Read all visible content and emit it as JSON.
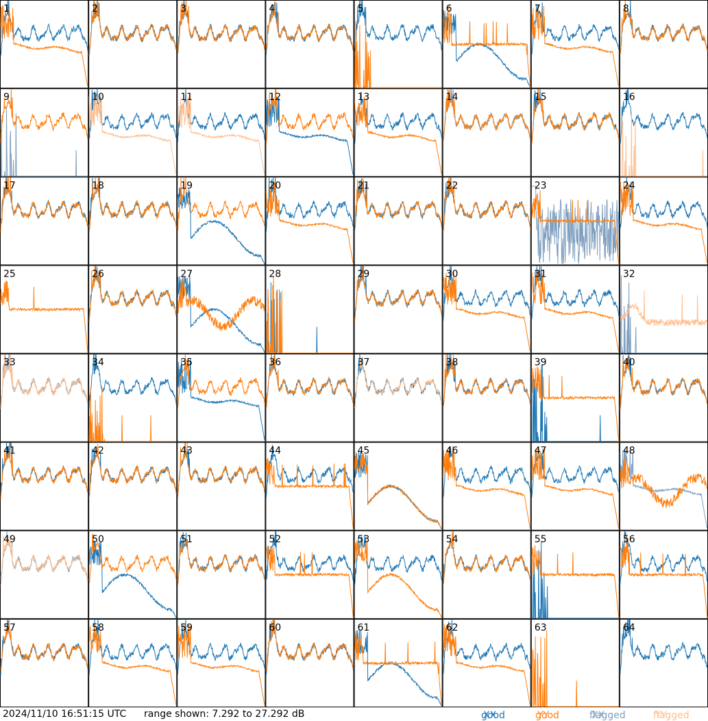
{
  "chart_data": {
    "type": "line",
    "layout": "8x8 small-multiples grid of antenna spectra",
    "timestamp": "2024/11/10 16:51:15 UTC",
    "range_text": "range shown: 7.292 to 27.292 dB",
    "ylim": [
      7.292,
      27.292
    ],
    "y_unit": "dB",
    "legend": [
      {
        "label": "good",
        "pol": "XX",
        "color": "#1f77b4"
      },
      {
        "label": "good",
        "pol": "YY",
        "color": "#ff7f0e"
      },
      {
        "label": "flagged",
        "pol": "XX",
        "color": "#7f9fbf"
      },
      {
        "label": "flagged",
        "pol": "YY",
        "color": "#ffbf8f"
      }
    ],
    "legend_placement": "bottom-right",
    "colors": {
      "good_xx": "#1f77b4",
      "good_yy": "#ff7f0e",
      "flagged_xx": "#7f9fbf",
      "flagged_yy": "#ffbf8f"
    },
    "panels": [
      {
        "id": "1",
        "xx": "normal",
        "yy": "low"
      },
      {
        "id": "2",
        "xx": "normal",
        "yy": "normal"
      },
      {
        "id": "3",
        "xx": "normal",
        "yy": "normal"
      },
      {
        "id": "4",
        "xx": "normal",
        "yy": "normal"
      },
      {
        "id": "5",
        "xx": "normal",
        "yy": "dead"
      },
      {
        "id": "6",
        "xx": "dip",
        "yy": "flat"
      },
      {
        "id": "7",
        "xx": "normal",
        "yy": "low"
      },
      {
        "id": "8",
        "xx": "normal",
        "yy": "normal"
      },
      {
        "id": "9",
        "xx": "flagged-dead",
        "yy": "normal"
      },
      {
        "id": "10",
        "xx": "normal",
        "yy": "flagged-low"
      },
      {
        "id": "11",
        "xx": "normal",
        "yy": "flagged-low"
      },
      {
        "id": "12",
        "xx": "low",
        "yy": "normal"
      },
      {
        "id": "13",
        "xx": "normal",
        "yy": "low"
      },
      {
        "id": "14",
        "xx": "flagged-normal",
        "yy": "normal"
      },
      {
        "id": "15",
        "xx": "normal",
        "yy": "normal"
      },
      {
        "id": "16",
        "xx": "normal",
        "yy": "flagged-dead"
      },
      {
        "id": "17",
        "xx": "normal",
        "yy": "normal"
      },
      {
        "id": "18",
        "xx": "normal",
        "yy": "normal"
      },
      {
        "id": "19",
        "xx": "dip",
        "yy": "normal"
      },
      {
        "id": "20",
        "xx": "normal",
        "yy": "low"
      },
      {
        "id": "21",
        "xx": "normal",
        "yy": "normal"
      },
      {
        "id": "22",
        "xx": "normal",
        "yy": "normal"
      },
      {
        "id": "23",
        "xx": "flagged-noise",
        "yy": "flat"
      },
      {
        "id": "24",
        "xx": "normal",
        "yy": "low"
      },
      {
        "id": "25",
        "xx": "none",
        "yy": "flat"
      },
      {
        "id": "26",
        "xx": "normal",
        "yy": "normal"
      },
      {
        "id": "27",
        "xx": "dip",
        "yy": "bumpy"
      },
      {
        "id": "28",
        "xx": "dead",
        "yy": "dead"
      },
      {
        "id": "29",
        "xx": "normal",
        "yy": "normal"
      },
      {
        "id": "30",
        "xx": "normal",
        "yy": "low"
      },
      {
        "id": "31",
        "xx": "normal",
        "yy": "low"
      },
      {
        "id": "32",
        "xx": "flagged-dead",
        "yy": "flagged-mid"
      },
      {
        "id": "33",
        "xx": "flagged-normal",
        "yy": "flagged-normal"
      },
      {
        "id": "34",
        "xx": "normal",
        "yy": "dead"
      },
      {
        "id": "35",
        "xx": "low",
        "yy": "normal"
      },
      {
        "id": "36",
        "xx": "normal",
        "yy": "normal"
      },
      {
        "id": "37",
        "xx": "normal",
        "yy": "flagged-normal"
      },
      {
        "id": "38",
        "xx": "normal",
        "yy": "normal"
      },
      {
        "id": "39",
        "xx": "dead",
        "yy": "flat"
      },
      {
        "id": "40",
        "xx": "normal",
        "yy": "normal"
      },
      {
        "id": "41",
        "xx": "normal",
        "yy": "normal"
      },
      {
        "id": "42",
        "xx": "normal",
        "yy": "normal"
      },
      {
        "id": "43",
        "xx": "normal",
        "yy": "normal"
      },
      {
        "id": "44",
        "xx": "normal",
        "yy": "flat"
      },
      {
        "id": "45",
        "xx": "dip",
        "yy": "dip"
      },
      {
        "id": "46",
        "xx": "normal",
        "yy": "low"
      },
      {
        "id": "47",
        "xx": "normal",
        "yy": "low"
      },
      {
        "id": "48",
        "xx": "flagged-low",
        "yy": "bumpy"
      },
      {
        "id": "49",
        "xx": "flagged-normal",
        "yy": "flagged-normal"
      },
      {
        "id": "50",
        "xx": "dip",
        "yy": "normal"
      },
      {
        "id": "51",
        "xx": "normal",
        "yy": "normal"
      },
      {
        "id": "52",
        "xx": "normal",
        "yy": "flat"
      },
      {
        "id": "53",
        "xx": "normal",
        "yy": "dip"
      },
      {
        "id": "54",
        "xx": "normal",
        "yy": "normal"
      },
      {
        "id": "55",
        "xx": "dead",
        "yy": "flat"
      },
      {
        "id": "56",
        "xx": "normal",
        "yy": "flat"
      },
      {
        "id": "57",
        "xx": "normal",
        "yy": "normal"
      },
      {
        "id": "58",
        "xx": "normal",
        "yy": "low"
      },
      {
        "id": "59",
        "xx": "normal",
        "yy": "low"
      },
      {
        "id": "60",
        "xx": "normal",
        "yy": "normal"
      },
      {
        "id": "61",
        "xx": "dip",
        "yy": "flat"
      },
      {
        "id": "62",
        "xx": "normal",
        "yy": "low"
      },
      {
        "id": "63",
        "xx": "none",
        "yy": "dead"
      },
      {
        "id": "64",
        "xx": "normal",
        "yy": "none"
      }
    ]
  }
}
